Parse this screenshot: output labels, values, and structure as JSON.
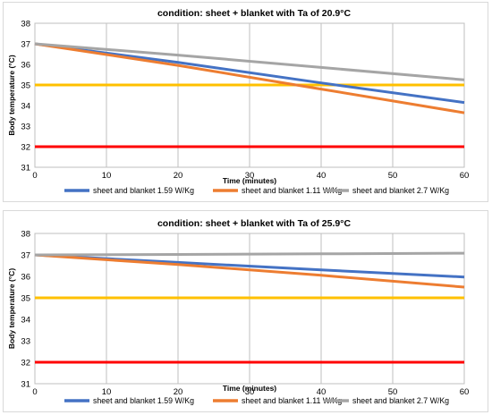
{
  "chart_data": [
    {
      "type": "line",
      "title": "condition: sheet + blanket with Ta of 20.9°C",
      "xlabel": "Time (minutes)",
      "ylabel": "Body temperature (°C)",
      "xlim": [
        0,
        60
      ],
      "ylim": [
        31,
        38
      ],
      "xticks": [
        "0",
        "10",
        "20",
        "30",
        "40",
        "50",
        "60"
      ],
      "yticks": [
        "31",
        "32",
        "33",
        "34",
        "35",
        "36",
        "37",
        "38"
      ],
      "grid": "vertical",
      "legend": "bottom",
      "series": [
        {
          "name": "sheet and blanket 1.59 W/Kg",
          "color": "#4472C4",
          "points": [
            [
              0,
              37.0
            ],
            [
              20,
              36.1
            ],
            [
              40,
              35.1
            ],
            [
              60,
              34.15
            ]
          ]
        },
        {
          "name": "sheet and blanket 1.11 W/Kg",
          "color": "#ED7D31",
          "points": [
            [
              0,
              37.0
            ],
            [
              20,
              35.95
            ],
            [
              40,
              34.8
            ],
            [
              60,
              33.65
            ]
          ]
        },
        {
          "name": "sheet and blanket  2.7 W/Kg",
          "color": "#A5A5A5",
          "points": [
            [
              0,
              37.0
            ],
            [
              20,
              36.45
            ],
            [
              40,
              35.85
            ],
            [
              60,
              35.25
            ]
          ]
        }
      ],
      "reference_lines": [
        {
          "y": 35,
          "color": "#FFC000"
        },
        {
          "y": 32,
          "color": "#FF0000"
        }
      ]
    },
    {
      "type": "line",
      "title": "condition: sheet + blanket with Ta of 25.9°C",
      "xlabel": "Time (minutes)",
      "ylabel": "Body temperature (°C)",
      "xlim": [
        0,
        60
      ],
      "ylim": [
        31,
        38
      ],
      "xticks": [
        "0",
        "10",
        "20",
        "30",
        "40",
        "50",
        "60"
      ],
      "yticks": [
        "31",
        "32",
        "33",
        "34",
        "35",
        "36",
        "37",
        "38"
      ],
      "grid": "vertical",
      "legend": "bottom",
      "series": [
        {
          "name": "sheet and blanket 1.59 W/Kg",
          "color": "#4472C4",
          "points": [
            [
              0,
              37.0
            ],
            [
              20,
              36.65
            ],
            [
              40,
              36.3
            ],
            [
              60,
              35.97
            ]
          ]
        },
        {
          "name": "sheet and blanket 1.11 W/Kg",
          "color": "#ED7D31",
          "points": [
            [
              0,
              37.0
            ],
            [
              20,
              36.55
            ],
            [
              40,
              36.05
            ],
            [
              60,
              35.5
            ]
          ]
        },
        {
          "name": "sheet and blanket  2.7 W/Kg",
          "color": "#A5A5A5",
          "points": [
            [
              0,
              37.0
            ],
            [
              20,
              37.02
            ],
            [
              40,
              37.05
            ],
            [
              60,
              37.08
            ]
          ]
        }
      ],
      "reference_lines": [
        {
          "y": 35,
          "color": "#FFC000"
        },
        {
          "y": 32,
          "color": "#FF0000"
        }
      ]
    }
  ]
}
